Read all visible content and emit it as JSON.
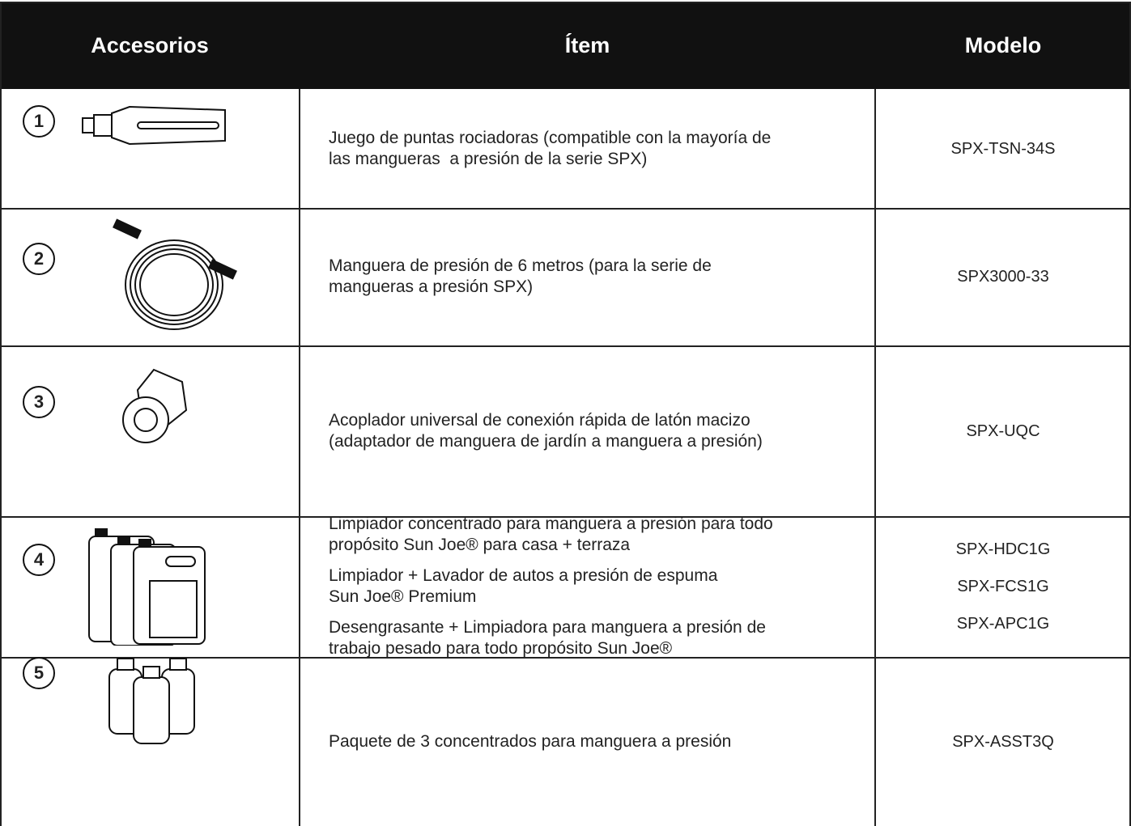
{
  "table": {
    "header": [
      "Accesorios",
      "Ítem",
      "Modelo"
    ],
    "rows": [
      {
        "number": "1",
        "items": [
          [
            "Juego de puntas rociadoras (compatible con la mayoría de",
            "las mangueras  a presión de la serie SPX)"
          ]
        ],
        "models": [
          "SPX-TSN-34S"
        ]
      },
      {
        "number": "2",
        "items": [
          [
            "Manguera de presión de 6 metros (para la serie de",
            "mangueras a presión SPX)"
          ]
        ],
        "models": [
          "SPX3000-33"
        ]
      },
      {
        "number": "3",
        "items": [
          [
            "Acoplador universal de conexión rápida de latón macizo",
            "(adaptador de manguera de jardín a manguera a presión)"
          ]
        ],
        "models": [
          "SPX-UQC"
        ]
      },
      {
        "number": "4",
        "items": [
          [
            "Limpiador concentrado para manguera a presión para todo",
            "propósito Sun Joe® para casa + terraza"
          ],
          [
            "Limpiador + Lavador de autos a presión de espuma",
            "Sun Joe® Premium"
          ],
          [
            "Desengrasante + Limpiadora para manguera a presión de",
            "trabajo pesado para todo propósito Sun Joe®"
          ]
        ],
        "models": [
          "SPX-HDC1G",
          "SPX-FCS1G",
          "SPX-APC1G"
        ]
      },
      {
        "number": "5",
        "items": [
          [
            "Paquete de 3 concentrados para manguera a presión"
          ]
        ],
        "models": [
          "SPX-ASST3Q"
        ]
      }
    ]
  }
}
